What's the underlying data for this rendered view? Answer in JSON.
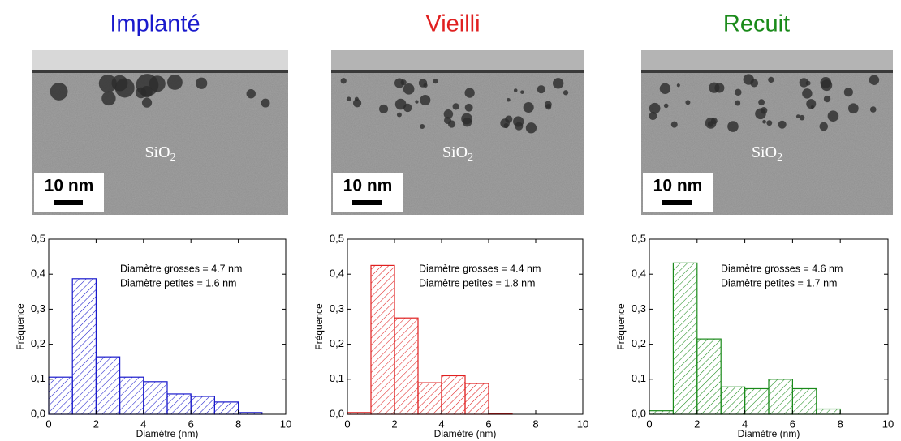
{
  "chart_data": [
    {
      "type": "histogram",
      "title": "Implanté",
      "color": "#1a1acc",
      "bins": [
        0,
        1,
        2,
        3,
        4,
        5,
        6,
        7,
        8,
        9
      ],
      "values": [
        0.106,
        0.387,
        0.164,
        0.106,
        0.093,
        0.058,
        0.051,
        0.035,
        0.005
      ],
      "xlabel": "Diamètre (nm)",
      "ylabel": "Fréquence",
      "annotations": [
        "Diamètre grosses = 4.7 nm",
        "Diamètre petites = 1.6 nm"
      ],
      "xlim": [
        0,
        10
      ],
      "ylim": [
        0,
        0.5
      ],
      "xticks": [
        0,
        2,
        4,
        6,
        8,
        10
      ],
      "yticks": [
        {
          "value": 0,
          "label": "0,0"
        },
        {
          "value": 0.1,
          "label": "0,1"
        },
        {
          "value": 0.2,
          "label": "0,2"
        },
        {
          "value": 0.3,
          "label": "0,3"
        },
        {
          "value": 0.4,
          "label": "0,4"
        },
        {
          "value": 0.5,
          "label": "0,5"
        }
      ]
    },
    {
      "type": "histogram",
      "title": "Vieilli",
      "color": "#e02020",
      "bins": [
        0,
        1,
        2,
        3,
        4,
        5,
        6,
        7
      ],
      "values": [
        0.005,
        0.425,
        0.275,
        0.09,
        0.11,
        0.088,
        0.002
      ],
      "xlabel": "Diamètre (nm)",
      "ylabel": "Fréquence",
      "annotations": [
        "Diamètre grosses = 4.4 nm",
        "Diamètre petites = 1.8 nm"
      ],
      "xlim": [
        0,
        10
      ],
      "ylim": [
        0,
        0.5
      ],
      "xticks": [
        0,
        2,
        4,
        6,
        8,
        10
      ],
      "yticks": [
        {
          "value": 0,
          "label": "0,0"
        },
        {
          "value": 0.1,
          "label": "0,1"
        },
        {
          "value": 0.2,
          "label": "0,2"
        },
        {
          "value": 0.3,
          "label": "0,3"
        },
        {
          "value": 0.4,
          "label": "0,4"
        },
        {
          "value": 0.5,
          "label": "0,5"
        }
      ]
    },
    {
      "type": "histogram",
      "title": "Recuit",
      "color": "#1a8a1a",
      "bins": [
        0,
        1,
        2,
        3,
        4,
        5,
        6,
        7,
        8
      ],
      "values": [
        0.01,
        0.432,
        0.215,
        0.078,
        0.073,
        0.1,
        0.073,
        0.015
      ],
      "xlabel": "Diamètre (nm)",
      "ylabel": "Fréquence",
      "annotations": [
        "Diamètre grosses = 4.6 nm",
        "Diamètre petites = 1.7 nm"
      ],
      "xlim": [
        0,
        10
      ],
      "ylim": [
        0,
        0.5
      ],
      "xticks": [
        0,
        2,
        4,
        6,
        8,
        10
      ],
      "yticks": [
        {
          "value": 0,
          "label": "0,0"
        },
        {
          "value": 0.1,
          "label": "0,1"
        },
        {
          "value": 0.2,
          "label": "0,2"
        },
        {
          "value": 0.3,
          "label": "0,3"
        },
        {
          "value": 0.4,
          "label": "0,4"
        },
        {
          "value": 0.5,
          "label": "0,5"
        }
      ]
    }
  ],
  "images": [
    {
      "label": "SiO",
      "subscript": "2",
      "scale": "10 nm"
    },
    {
      "label": "SiO",
      "subscript": "2",
      "scale": "10 nm"
    },
    {
      "label": "SiO",
      "subscript": "2",
      "scale": "10 nm"
    }
  ]
}
